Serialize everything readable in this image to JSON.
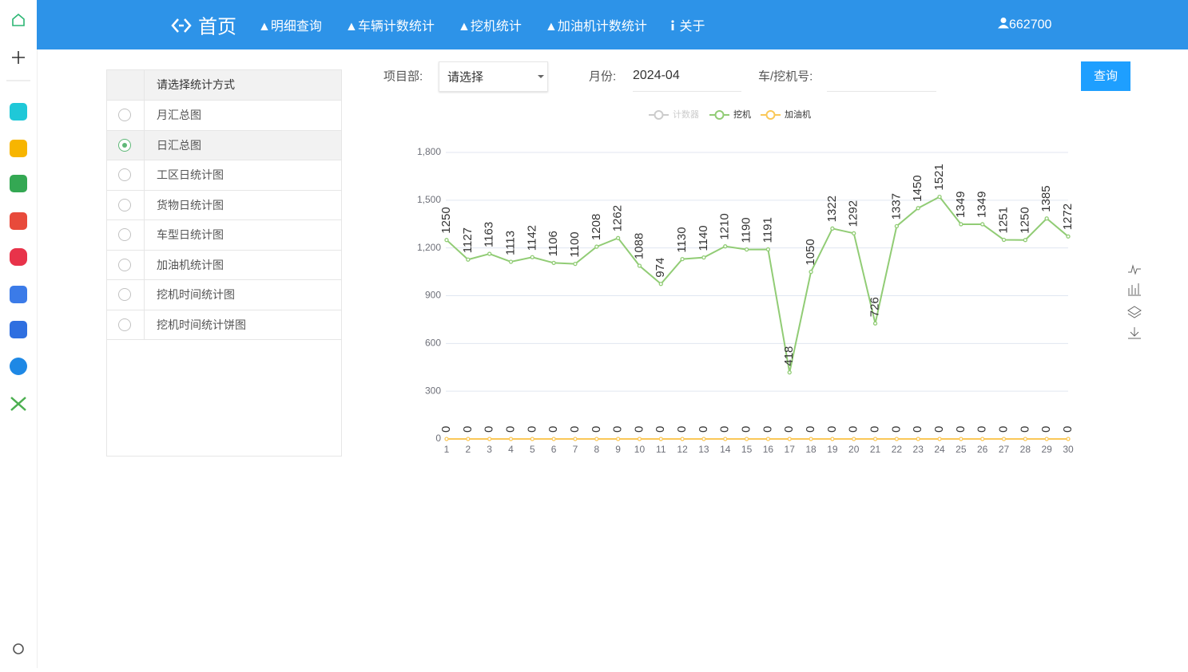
{
  "nav": {
    "home": "首页",
    "items": [
      "明细查询",
      "车辆计数统计",
      "挖机统计",
      "加油机计数统计",
      "关于"
    ],
    "user": "662700"
  },
  "panel": {
    "header": "请选择统计方式",
    "options": [
      "月汇总图",
      "日汇总图",
      "工区日统计图",
      "货物日统计图",
      "车型日统计图",
      "加油机统计图",
      "挖机时间统计图",
      "挖机时间统计饼图"
    ],
    "selected": 1
  },
  "form": {
    "project_label": "项目部:",
    "project_value": "请选择",
    "month_label": "月份:",
    "month_value": "2024-04",
    "vehicle_label": "车/挖机号:",
    "button": "查询"
  },
  "chart_data": {
    "type": "line",
    "categories": [
      "1",
      "2",
      "3",
      "4",
      "5",
      "6",
      "7",
      "8",
      "9",
      "10",
      "11",
      "12",
      "13",
      "14",
      "15",
      "16",
      "17",
      "18",
      "19",
      "20",
      "21",
      "22",
      "23",
      "24",
      "25",
      "26",
      "27",
      "28",
      "29",
      "30"
    ],
    "series": [
      {
        "name": "计数器",
        "color": "#cccccc",
        "visible": false
      },
      {
        "name": "挖机",
        "color": "#91cc75",
        "visible": true,
        "values": [
          1250,
          1127,
          1163,
          1113,
          1142,
          1106,
          1100,
          1208,
          1262,
          1088,
          974,
          1130,
          1140,
          1210,
          1190,
          1191,
          418,
          1050,
          1322,
          1292,
          726,
          1337,
          1450,
          1521,
          1349,
          1349,
          1251,
          1250,
          1385,
          1272
        ]
      },
      {
        "name": "加油机",
        "color": "#fac858",
        "visible": true,
        "values": [
          0,
          0,
          0,
          0,
          0,
          0,
          0,
          0,
          0,
          0,
          0,
          0,
          0,
          0,
          0,
          0,
          0,
          0,
          0,
          0,
          0,
          0,
          0,
          0,
          0,
          0,
          0,
          0,
          0,
          0
        ]
      }
    ],
    "ylim": [
      0,
      1800
    ],
    "yticks": [
      0,
      300,
      600,
      900,
      {
        "value": 1200,
        "label": "1,200"
      },
      {
        "value": 1500,
        "label": "1,500"
      },
      {
        "value": 1800,
        "label": "1,800"
      }
    ],
    "grid": true,
    "legend": "top",
    "data_labels": true
  }
}
